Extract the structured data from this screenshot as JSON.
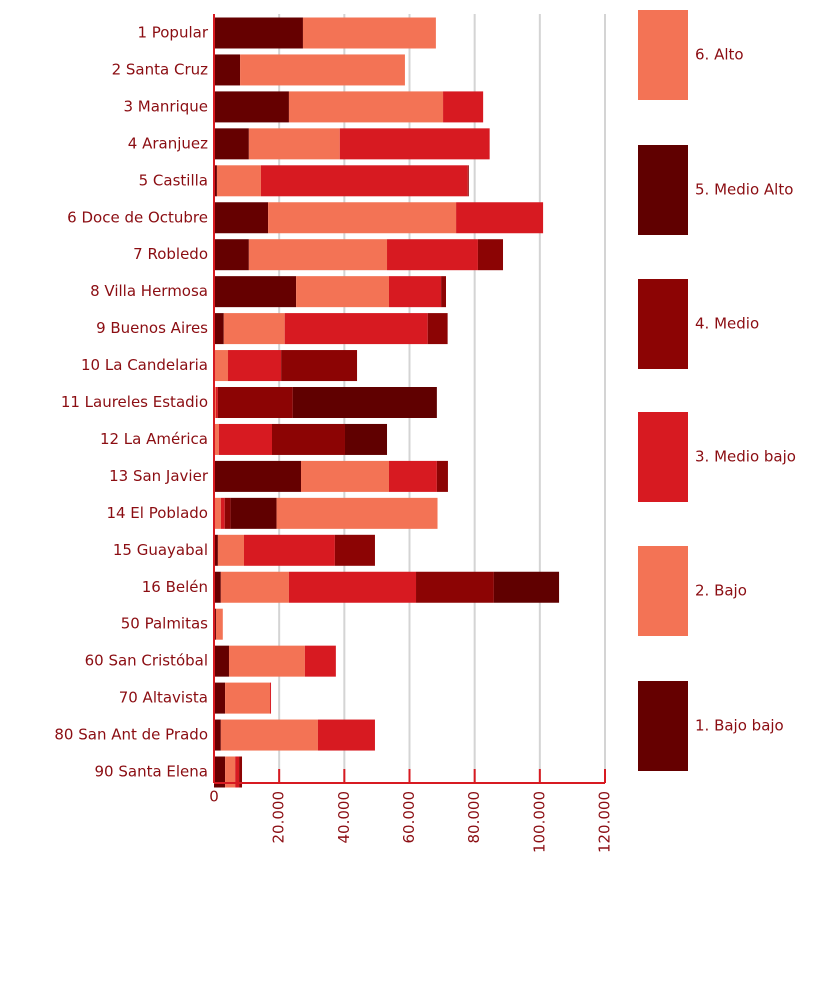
{
  "chart_data": {
    "type": "stacked-barh",
    "categories": [
      "1 Popular",
      "2 Santa Cruz",
      "3 Manrique",
      "4 Aranjuez",
      "5 Castilla",
      "6 Doce de Octubre",
      "7 Robledo",
      "8 Villa Hermosa",
      "9 Buenos Aires",
      "10 La Candelaria",
      "11 Laureles Estadio",
      "12 La América",
      "13 San Javier",
      "14 El Poblado",
      "15 Guayabal",
      "16 Belén",
      "50 Palmitas",
      "60 San Cristóbal",
      "70 Altavista",
      "80 San Ant de Prado",
      "90 Santa Elena"
    ],
    "series": [
      {
        "name": "1. Bajo bajo",
        "color": "#650000",
        "values": [
          27300,
          8000,
          23000,
          10700,
          900,
          16600,
          10700,
          25200,
          3000,
          0,
          0,
          0,
          26700,
          0,
          1200,
          2100,
          600,
          4600,
          3400,
          2100,
          3400
        ]
      },
      {
        "name": "2. Bajo",
        "color": "#f37355",
        "values": [
          40800,
          50600,
          47300,
          27900,
          13500,
          57700,
          42400,
          28500,
          18700,
          4300,
          600,
          1500,
          27000,
          2100,
          8000,
          20900,
          2100,
          23300,
          13800,
          29800,
          3100
        ]
      },
      {
        "name": "3. Medio bajo",
        "color": "#d71a21",
        "values": [
          0,
          0,
          12300,
          46000,
          63500,
          26700,
          27900,
          16000,
          43900,
          16300,
          600,
          16300,
          14700,
          1200,
          27900,
          39000,
          0,
          9500,
          300,
          17500,
          1200
        ]
      },
      {
        "name": "4. Medio",
        "color": "#8c0404",
        "values": [
          0,
          0,
          0,
          0,
          300,
          0,
          7700,
          1500,
          6100,
          23300,
          23000,
          22400,
          3400,
          1800,
          12300,
          23900,
          0,
          0,
          0,
          0,
          900
        ]
      },
      {
        "name": "5. Medio Alto",
        "color": "#600000",
        "values": [
          0,
          0,
          0,
          0,
          0,
          0,
          0,
          0,
          0,
          0,
          44200,
          12900,
          0,
          14100,
          0,
          20000,
          0,
          0,
          0,
          0,
          0
        ]
      },
      {
        "name": "6. Alto",
        "color": "#f37355",
        "values": [
          0,
          0,
          0,
          0,
          0,
          0,
          0,
          0,
          0,
          0,
          0,
          0,
          0,
          49400,
          0,
          0,
          0,
          0,
          0,
          0,
          0
        ]
      }
    ],
    "xlim": [
      0,
      120000
    ],
    "xticks": [
      0,
      {
        "value": 20000,
        "label": "20.000"
      },
      {
        "value": 40000,
        "label": "40.000"
      },
      {
        "value": 60000,
        "label": "60.000"
      },
      {
        "value": 80000,
        "label": "80.000"
      },
      {
        "value": 100000,
        "label": "100.000"
      },
      {
        "value": 120000,
        "label": "120.000"
      }
    ],
    "grid": true,
    "legend": "right"
  }
}
